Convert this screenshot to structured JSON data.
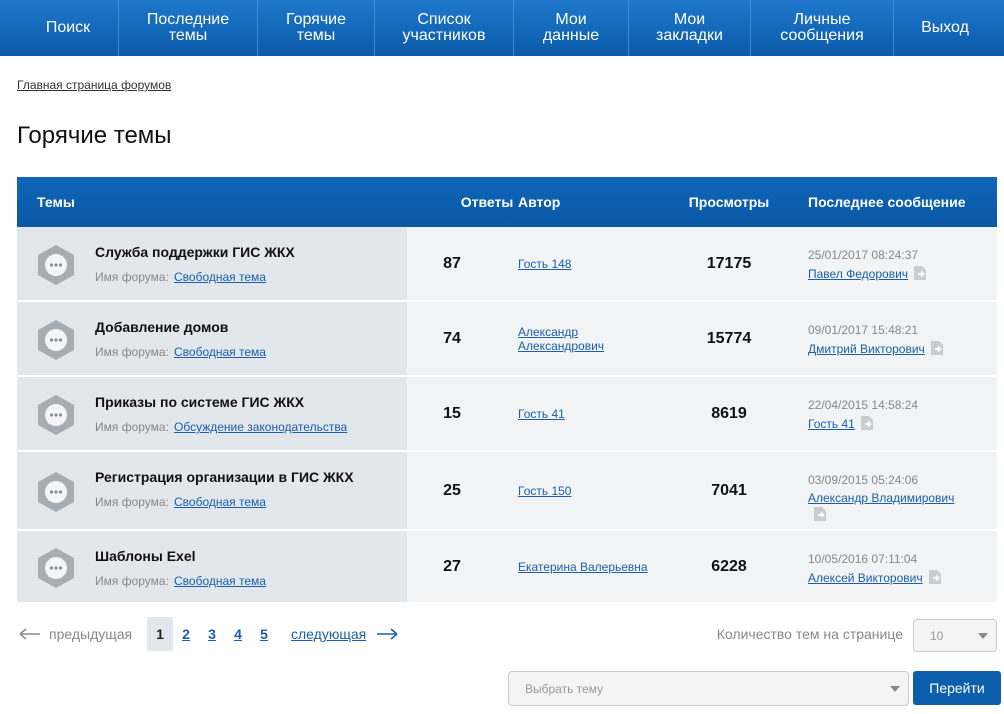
{
  "nav": [
    "Поиск",
    "Последние темы",
    "Горячие темы",
    "Список участников",
    "Мои данные",
    "Мои закладки",
    "Личные сообщения",
    "Выход"
  ],
  "breadcrumb": "Главная страница форумов",
  "page_title": "Горячие темы",
  "table": {
    "headers": [
      "Темы",
      "Ответы",
      "Автор",
      "Просмотры",
      "Последнее сообщение"
    ],
    "forum_label": "Имя форума:",
    "rows": [
      {
        "title": "Служба поддержки ГИС ЖКХ",
        "forum": "Свободная тема",
        "replies": 87,
        "author": "Гость 148",
        "views": 17175,
        "last_date": "25/01/2017 08:24:37",
        "last_author": "Павел Федорович"
      },
      {
        "title": "Добавление домов",
        "forum": "Свободная тема",
        "replies": 74,
        "author": "Александр Александрович",
        "views": 15774,
        "last_date": "09/01/2017 15:48:21",
        "last_author": "Дмитрий Викторович"
      },
      {
        "title": "Приказы по системе ГИС ЖКХ",
        "forum": "Обсуждение законодательства",
        "replies": 15,
        "author": "Гость 41",
        "views": 8619,
        "last_date": "22/04/2015 14:58:24",
        "last_author": "Гость 41"
      },
      {
        "title": "Регистрация организации в ГИС ЖКХ",
        "forum": "Свободная тема",
        "replies": 25,
        "author": "Гость 150",
        "views": 7041,
        "last_date": "03/09/2015 05:24:06",
        "last_author": "Александр Владимирович"
      },
      {
        "title": "Шаблоны Exel",
        "forum": "Свободная тема",
        "replies": 27,
        "author": "Екатерина Валерьевна",
        "views": 6228,
        "last_date": "10/05/2016 07:11:04",
        "last_author": "Алексей Викторович"
      }
    ]
  },
  "pagination": {
    "prev": "предыдущая",
    "pages": [
      1,
      2,
      3,
      4,
      5
    ],
    "next": "следующая",
    "per_page_label": "Количество тем на странице",
    "per_page": 10
  },
  "topic_select": "Выбрать тему",
  "go_button": "Перейти"
}
